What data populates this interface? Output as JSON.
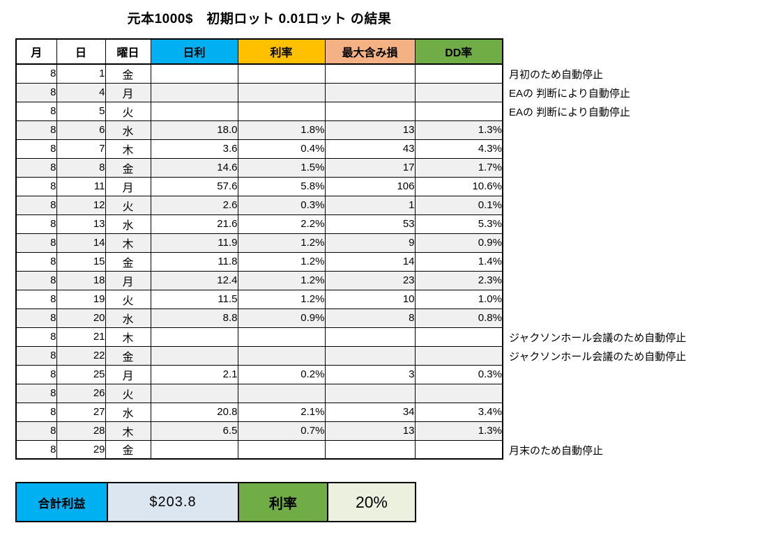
{
  "title": "元本1000$　初期ロット 0.01ロット の結果",
  "table": {
    "columns": [
      {
        "key": "month",
        "label": "月",
        "bg": "#FFFFFF"
      },
      {
        "key": "day",
        "label": "日",
        "bg": "#FFFFFF"
      },
      {
        "key": "weekday",
        "label": "曜日",
        "bg": "#FFFFFF"
      },
      {
        "key": "daily",
        "label": "日利",
        "bg": "#00B0F0"
      },
      {
        "key": "rate",
        "label": "利率",
        "bg": "#FFC000"
      },
      {
        "key": "max_loss",
        "label": "最大含み損",
        "bg": "#F4B183"
      },
      {
        "key": "dd",
        "label": "DD率",
        "bg": "#70AD47"
      }
    ],
    "rows": [
      {
        "month": "8",
        "day": "1",
        "weekday": "金",
        "daily": "",
        "rate": "",
        "max_loss": "",
        "dd": "",
        "note": "月初のため自動停止"
      },
      {
        "month": "8",
        "day": "4",
        "weekday": "月",
        "daily": "",
        "rate": "",
        "max_loss": "",
        "dd": "",
        "note": "EAの 判断により自動停止"
      },
      {
        "month": "8",
        "day": "5",
        "weekday": "火",
        "daily": "",
        "rate": "",
        "max_loss": "",
        "dd": "",
        "note": "EAの 判断により自動停止"
      },
      {
        "month": "8",
        "day": "6",
        "weekday": "水",
        "daily": "18.0",
        "rate": "1.8%",
        "max_loss": "13",
        "dd": "1.3%",
        "note": ""
      },
      {
        "month": "8",
        "day": "7",
        "weekday": "木",
        "daily": "3.6",
        "rate": "0.4%",
        "max_loss": "43",
        "dd": "4.3%",
        "note": ""
      },
      {
        "month": "8",
        "day": "8",
        "weekday": "金",
        "daily": "14.6",
        "rate": "1.5%",
        "max_loss": "17",
        "dd": "1.7%",
        "note": ""
      },
      {
        "month": "8",
        "day": "11",
        "weekday": "月",
        "daily": "57.6",
        "rate": "5.8%",
        "max_loss": "106",
        "dd": "10.6%",
        "note": ""
      },
      {
        "month": "8",
        "day": "12",
        "weekday": "火",
        "daily": "2.6",
        "rate": "0.3%",
        "max_loss": "1",
        "dd": "0.1%",
        "note": ""
      },
      {
        "month": "8",
        "day": "13",
        "weekday": "水",
        "daily": "21.6",
        "rate": "2.2%",
        "max_loss": "53",
        "dd": "5.3%",
        "note": ""
      },
      {
        "month": "8",
        "day": "14",
        "weekday": "木",
        "daily": "11.9",
        "rate": "1.2%",
        "max_loss": "9",
        "dd": "0.9%",
        "note": ""
      },
      {
        "month": "8",
        "day": "15",
        "weekday": "金",
        "daily": "11.8",
        "rate": "1.2%",
        "max_loss": "14",
        "dd": "1.4%",
        "note": ""
      },
      {
        "month": "8",
        "day": "18",
        "weekday": "月",
        "daily": "12.4",
        "rate": "1.2%",
        "max_loss": "23",
        "dd": "2.3%",
        "note": ""
      },
      {
        "month": "8",
        "day": "19",
        "weekday": "火",
        "daily": "11.5",
        "rate": "1.2%",
        "max_loss": "10",
        "dd": "1.0%",
        "note": ""
      },
      {
        "month": "8",
        "day": "20",
        "weekday": "水",
        "daily": "8.8",
        "rate": "0.9%",
        "max_loss": "8",
        "dd": "0.8%",
        "note": ""
      },
      {
        "month": "8",
        "day": "21",
        "weekday": "木",
        "daily": "",
        "rate": "",
        "max_loss": "",
        "dd": "",
        "note": "ジャクソンホール会議のため自動停止"
      },
      {
        "month": "8",
        "day": "22",
        "weekday": "金",
        "daily": "",
        "rate": "",
        "max_loss": "",
        "dd": "",
        "note": "ジャクソンホール会議のため自動停止"
      },
      {
        "month": "8",
        "day": "25",
        "weekday": "月",
        "daily": "2.1",
        "rate": "0.2%",
        "max_loss": "3",
        "dd": "0.3%",
        "note": ""
      },
      {
        "month": "8",
        "day": "26",
        "weekday": "火",
        "daily": "",
        "rate": "",
        "max_loss": "",
        "dd": "",
        "note": ""
      },
      {
        "month": "8",
        "day": "27",
        "weekday": "水",
        "daily": "20.8",
        "rate": "2.1%",
        "max_loss": "34",
        "dd": "3.4%",
        "note": ""
      },
      {
        "month": "8",
        "day": "28",
        "weekday": "木",
        "daily": "6.5",
        "rate": "0.7%",
        "max_loss": "13",
        "dd": "1.3%",
        "note": ""
      },
      {
        "month": "8",
        "day": "29",
        "weekday": "金",
        "daily": "",
        "rate": "",
        "max_loss": "",
        "dd": "",
        "note": "月末のため自動停止"
      }
    ]
  },
  "summary": {
    "profit_label": "合計利益",
    "profit_value": "$203.8",
    "rate_label": "利率",
    "rate_value": "20%"
  },
  "colors": {
    "header_blue": "#00B0F0",
    "header_gold": "#FFC000",
    "header_salmon": "#F4B183",
    "header_green": "#70AD47",
    "alt_row_gray": "#F0F0F0",
    "profit_value_bg": "#DCE6F1",
    "rate_value_bg": "#EBF1DE",
    "border_black": "#000000"
  }
}
